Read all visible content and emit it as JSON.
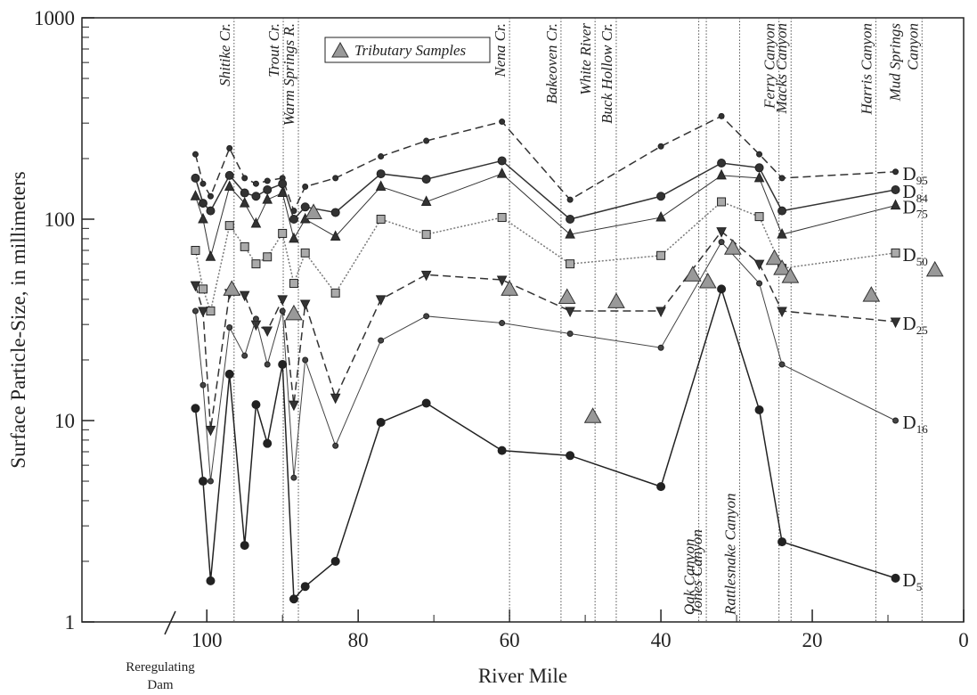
{
  "chart_data": {
    "type": "line",
    "x_label": "River Mile",
    "y_label": "Surface Particle-Size, in millimeters",
    "xlim": [
      116.5,
      0
    ],
    "xticks": [
      100,
      80,
      60,
      40,
      20,
      0
    ],
    "ylim": [
      1,
      1000
    ],
    "yticks": [
      1,
      10,
      100,
      1000
    ],
    "log_y": true,
    "x": [
      101.5,
      100.5,
      99.5,
      97,
      95,
      93.5,
      92,
      90,
      88.5,
      87,
      83,
      77,
      71,
      61,
      52,
      40,
      32,
      27,
      24,
      9
    ],
    "series": [
      {
        "name": "D95",
        "color": "#333",
        "style": "dashed",
        "marker": "dot",
        "values": [
          210,
          150,
          130,
          225,
          160,
          150,
          155,
          160,
          110,
          145,
          160,
          205,
          245,
          305,
          125,
          230,
          325,
          210,
          160,
          172
        ]
      },
      {
        "name": "D84",
        "color": "#333",
        "style": "solid",
        "marker": "circle",
        "values": [
          160,
          120,
          110,
          165,
          135,
          130,
          140,
          150,
          100,
          115,
          108,
          168,
          158,
          195,
          100,
          130,
          190,
          180,
          110,
          140
        ]
      },
      {
        "name": "D75",
        "color": "#333",
        "style": "thin",
        "marker": "triangle-up",
        "values": [
          130,
          100,
          65,
          145,
          120,
          95,
          125,
          135,
          80,
          100,
          82,
          145,
          122,
          168,
          84,
          102,
          165,
          160,
          84,
          117
        ]
      },
      {
        "name": "D50",
        "color": "#777",
        "style": "dotted",
        "marker": "square",
        "values": [
          70,
          45,
          35,
          93,
          73,
          60,
          65,
          85,
          48,
          68,
          43,
          100,
          84,
          102,
          60,
          66,
          122,
          103,
          57,
          68
        ]
      },
      {
        "name": "D25",
        "color": "#333",
        "style": "dashed",
        "marker": "triangle-down",
        "values": [
          47,
          35,
          9,
          43,
          42,
          30,
          28,
          40,
          12,
          38,
          13,
          40,
          53,
          50,
          35,
          35,
          87,
          60,
          35,
          31
        ]
      },
      {
        "name": "D16",
        "color": "#444",
        "style": "thin",
        "marker": "dot",
        "values": [
          35,
          15,
          5,
          29,
          21,
          32,
          19,
          35,
          5.2,
          20,
          7.5,
          25,
          33,
          30.5,
          27,
          23,
          77,
          48,
          19,
          10
        ]
      },
      {
        "name": "D5",
        "color": "#222",
        "style": "solid",
        "marker": "circle",
        "values": [
          11.5,
          5,
          1.6,
          17,
          2.4,
          12,
          7.7,
          19,
          1.3,
          1.5,
          2,
          9.8,
          12.2,
          7.1,
          6.7,
          4.7,
          45,
          11.3,
          2.5,
          1.65
        ]
      }
    ],
    "tributary_samples": {
      "name": "Tributary Samples",
      "color": "#999",
      "x": [
        96.7,
        88.5,
        85.9,
        60,
        52.4,
        49,
        45.9,
        35.8,
        33.8,
        30.5,
        25,
        24,
        22.9,
        12.2,
        3.8
      ],
      "values": [
        45,
        34,
        108,
        45,
        41,
        10.5,
        39,
        53,
        49,
        72,
        64,
        57,
        52,
        42,
        56
      ]
    },
    "reference_lines": [
      {
        "x": 96.4,
        "position": "top",
        "label_lines": [
          "Shitike Cr."
        ]
      },
      {
        "x": 89.9,
        "position": "top",
        "label_lines": [
          "Trout Cr."
        ]
      },
      {
        "x": 87.9,
        "position": "top",
        "label_lines": [
          "Warm Springs R."
        ]
      },
      {
        "x": 60,
        "position": "top",
        "label_lines": [
          "Nena Cr."
        ]
      },
      {
        "x": 53.2,
        "position": "top",
        "label_lines": [
          "Bakeoven Cr."
        ]
      },
      {
        "x": 48.7,
        "position": "top",
        "label_lines": [
          "White River"
        ]
      },
      {
        "x": 45.9,
        "position": "top",
        "label_lines": [
          "Buck Hollow Cr."
        ]
      },
      {
        "x": 35,
        "position": "bottom",
        "label_lines": [
          "Oak Canyon"
        ]
      },
      {
        "x": 34,
        "position": "bottom",
        "label_lines": [
          "Jones Canyon"
        ]
      },
      {
        "x": 29.6,
        "position": "bottom",
        "label_lines": [
          "Rattlesnake Canyon"
        ]
      },
      {
        "x": 24.4,
        "position": "top",
        "label_lines": [
          "Ferry Canyon"
        ]
      },
      {
        "x": 22.8,
        "position": "top",
        "label_lines": [
          "Macks Canyon"
        ]
      },
      {
        "x": 11.6,
        "position": "top",
        "label_lines": [
          "Harris Canyon"
        ]
      },
      {
        "x": 5.5,
        "position": "top",
        "label_lines": [
          "Mud Springs",
          "Canyon"
        ]
      }
    ],
    "dam_label_lines": [
      "Reregulating",
      "Dam"
    ]
  }
}
